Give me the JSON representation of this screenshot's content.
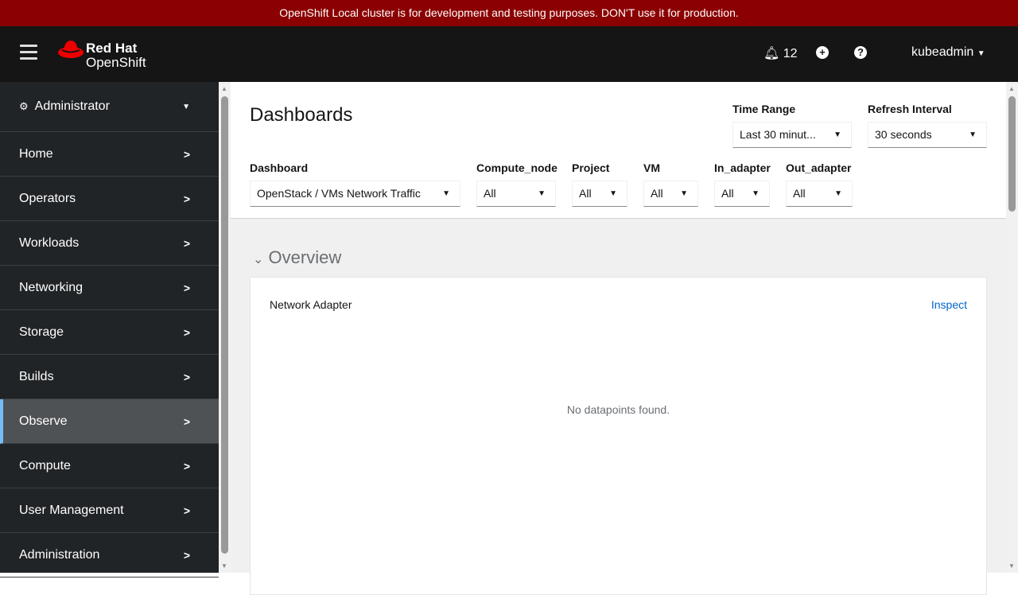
{
  "banner": "OpenShift Local cluster is for development and testing purposes. DON'T use it for production.",
  "header": {
    "logo_line1": "Red Hat",
    "logo_line2": "OpenShift",
    "notifications": "12",
    "user": "kubeadmin"
  },
  "sidebar": {
    "perspective": "Administrator",
    "items": [
      {
        "label": "Home"
      },
      {
        "label": "Operators"
      },
      {
        "label": "Workloads"
      },
      {
        "label": "Networking"
      },
      {
        "label": "Storage"
      },
      {
        "label": "Builds"
      },
      {
        "label": "Observe",
        "active": true
      },
      {
        "label": "Compute"
      },
      {
        "label": "User Management"
      },
      {
        "label": "Administration"
      }
    ]
  },
  "main": {
    "title": "Dashboards",
    "time_range": {
      "label": "Time Range",
      "value": "Last 30 minut..."
    },
    "refresh": {
      "label": "Refresh Interval",
      "value": "30 seconds"
    },
    "filters": [
      {
        "label": "Dashboard",
        "value": "OpenStack / VMs Network Traffic"
      },
      {
        "label": "Compute_node",
        "value": "All"
      },
      {
        "label": "Project",
        "value": "All"
      },
      {
        "label": "VM",
        "value": "All"
      },
      {
        "label": "In_adapter",
        "value": "All"
      },
      {
        "label": "Out_adapter",
        "value": "All"
      }
    ],
    "section": "Overview",
    "card": {
      "title": "Network Adapter",
      "inspect": "Inspect",
      "empty": "No datapoints found."
    }
  },
  "colors": {
    "banner": "#8b0000",
    "header": "#151515",
    "sidebar": "#212427",
    "accent": "#73bcf7",
    "link": "#0066cc"
  }
}
